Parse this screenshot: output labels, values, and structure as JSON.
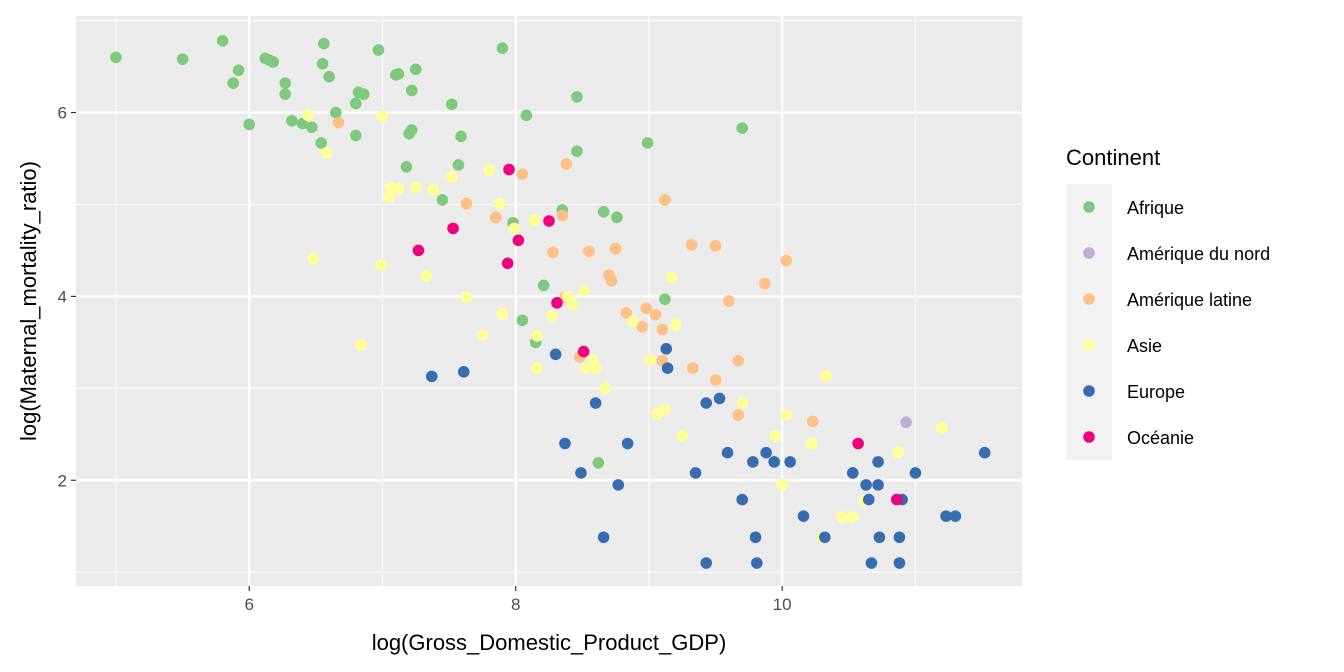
{
  "chart_data": {
    "type": "scatter",
    "title": "",
    "xlabel": "log(Gross_Domestic_Product_GDP)",
    "ylabel": "log(Maternal_mortality_ratio)",
    "xlim": [
      4.7,
      11.8
    ],
    "ylim": [
      0.85,
      7.05
    ],
    "x_ticks": [
      6,
      8,
      10
    ],
    "y_ticks": [
      2,
      4,
      6
    ],
    "grid": true,
    "panel_background": "#ebebeb",
    "legend": {
      "title": "Continent",
      "position": "right"
    },
    "series": [
      {
        "name": "Afrique",
        "color": "#7fc97f",
        "points": [
          [
            5.0,
            6.6
          ],
          [
            5.5,
            6.58
          ],
          [
            5.8,
            6.78
          ],
          [
            5.88,
            6.32
          ],
          [
            5.92,
            6.46
          ],
          [
            6.0,
            5.87
          ],
          [
            6.12,
            6.59
          ],
          [
            6.15,
            6.57
          ],
          [
            6.18,
            6.55
          ],
          [
            6.27,
            6.32
          ],
          [
            6.27,
            6.2
          ],
          [
            6.32,
            5.91
          ],
          [
            6.4,
            5.88
          ],
          [
            6.47,
            5.84
          ],
          [
            6.54,
            5.67
          ],
          [
            6.55,
            6.53
          ],
          [
            6.56,
            6.75
          ],
          [
            6.6,
            6.39
          ],
          [
            6.65,
            6.0
          ],
          [
            6.8,
            6.1
          ],
          [
            6.8,
            5.75
          ],
          [
            6.82,
            6.22
          ],
          [
            6.86,
            6.2
          ],
          [
            6.97,
            6.68
          ],
          [
            7.1,
            6.41
          ],
          [
            7.12,
            6.42
          ],
          [
            7.18,
            5.41
          ],
          [
            7.2,
            5.77
          ],
          [
            7.22,
            6.24
          ],
          [
            7.22,
            5.81
          ],
          [
            7.25,
            6.47
          ],
          [
            7.45,
            5.05
          ],
          [
            7.52,
            6.09
          ],
          [
            7.57,
            5.43
          ],
          [
            7.59,
            5.74
          ],
          [
            7.9,
            6.7
          ],
          [
            7.98,
            4.8
          ],
          [
            8.05,
            3.74
          ],
          [
            8.08,
            5.97
          ],
          [
            8.15,
            3.5
          ],
          [
            8.21,
            4.12
          ],
          [
            8.35,
            4.94
          ],
          [
            8.46,
            6.17
          ],
          [
            8.46,
            5.58
          ],
          [
            8.62,
            2.19
          ],
          [
            8.66,
            4.92
          ],
          [
            8.76,
            4.86
          ],
          [
            8.99,
            5.67
          ],
          [
            9.12,
            3.97
          ],
          [
            9.7,
            5.83
          ]
        ]
      },
      {
        "name": "Amérique du nord",
        "color": "#beaed4",
        "points": [
          [
            10.93,
            2.63
          ]
        ]
      },
      {
        "name": "Amérique latine",
        "color": "#fdc086",
        "points": [
          [
            6.67,
            5.89
          ],
          [
            7.63,
            5.01
          ],
          [
            7.85,
            4.86
          ],
          [
            8.05,
            5.33
          ],
          [
            8.28,
            4.48
          ],
          [
            8.35,
            4.88
          ],
          [
            8.37,
            3.99
          ],
          [
            8.38,
            5.44
          ],
          [
            8.48,
            3.34
          ],
          [
            8.55,
            4.49
          ],
          [
            8.7,
            4.23
          ],
          [
            8.72,
            4.17
          ],
          [
            8.75,
            4.52
          ],
          [
            8.83,
            3.82
          ],
          [
            8.95,
            3.67
          ],
          [
            8.98,
            3.87
          ],
          [
            9.05,
            3.8
          ],
          [
            9.1,
            3.64
          ],
          [
            9.1,
            3.3
          ],
          [
            9.12,
            5.05
          ],
          [
            9.32,
            4.56
          ],
          [
            9.33,
            3.22
          ],
          [
            9.5,
            4.55
          ],
          [
            9.5,
            3.09
          ],
          [
            9.6,
            3.95
          ],
          [
            9.67,
            3.3
          ],
          [
            9.67,
            2.71
          ],
          [
            9.87,
            4.14
          ],
          [
            10.03,
            4.39
          ],
          [
            10.23,
            2.64
          ]
        ]
      },
      {
        "name": "Asie",
        "color": "#ffff99",
        "points": [
          [
            6.44,
            5.97
          ],
          [
            6.48,
            4.41
          ],
          [
            6.58,
            5.56
          ],
          [
            6.84,
            3.47
          ],
          [
            6.99,
            4.34
          ],
          [
            7.0,
            5.96
          ],
          [
            7.05,
            5.08
          ],
          [
            7.06,
            5.19
          ],
          [
            7.12,
            5.17
          ],
          [
            7.25,
            5.19
          ],
          [
            7.33,
            4.22
          ],
          [
            7.38,
            5.16
          ],
          [
            7.52,
            5.3
          ],
          [
            7.63,
            3.99
          ],
          [
            7.75,
            3.58
          ],
          [
            7.8,
            5.37
          ],
          [
            7.88,
            5.01
          ],
          [
            7.9,
            3.81
          ],
          [
            7.99,
            4.74
          ],
          [
            8.14,
            4.83
          ],
          [
            8.16,
            3.57
          ],
          [
            8.16,
            3.22
          ],
          [
            8.27,
            3.79
          ],
          [
            8.39,
            4.0
          ],
          [
            8.43,
            3.91
          ],
          [
            8.51,
            4.06
          ],
          [
            8.53,
            3.22
          ],
          [
            8.58,
            3.31
          ],
          [
            8.6,
            3.22
          ],
          [
            8.67,
            3.0
          ],
          [
            8.88,
            3.73
          ],
          [
            9.01,
            3.31
          ],
          [
            9.06,
            2.72
          ],
          [
            9.12,
            2.77
          ],
          [
            9.17,
            4.21
          ],
          [
            9.2,
            3.69
          ],
          [
            9.25,
            2.48
          ],
          [
            9.7,
            2.84
          ],
          [
            9.95,
            2.48
          ],
          [
            10.0,
            1.95
          ],
          [
            10.03,
            2.71
          ],
          [
            10.22,
            2.4
          ],
          [
            10.3,
            1.38
          ],
          [
            10.33,
            3.13
          ],
          [
            10.45,
            1.6
          ],
          [
            10.53,
            1.6
          ],
          [
            10.62,
            1.78
          ],
          [
            10.87,
            2.3
          ],
          [
            11.2,
            2.57
          ]
        ]
      },
      {
        "name": "Europe",
        "color": "#386cb0",
        "points": [
          [
            7.37,
            3.13
          ],
          [
            7.61,
            3.18
          ],
          [
            8.3,
            3.37
          ],
          [
            8.37,
            2.4
          ],
          [
            8.49,
            2.08
          ],
          [
            8.6,
            2.84
          ],
          [
            8.66,
            1.38
          ],
          [
            8.77,
            1.95
          ],
          [
            8.84,
            2.4
          ],
          [
            9.13,
            3.43
          ],
          [
            9.14,
            3.22
          ],
          [
            9.35,
            2.08
          ],
          [
            9.43,
            1.1
          ],
          [
            9.43,
            2.84
          ],
          [
            9.53,
            2.89
          ],
          [
            9.59,
            2.3
          ],
          [
            9.7,
            1.79
          ],
          [
            9.78,
            2.2
          ],
          [
            9.8,
            1.38
          ],
          [
            9.81,
            1.1
          ],
          [
            9.88,
            2.3
          ],
          [
            9.94,
            2.2
          ],
          [
            10.06,
            2.2
          ],
          [
            10.16,
            1.61
          ],
          [
            10.32,
            1.38
          ],
          [
            10.53,
            2.08
          ],
          [
            10.63,
            1.95
          ],
          [
            10.65,
            1.79
          ],
          [
            10.67,
            1.1
          ],
          [
            10.72,
            2.2
          ],
          [
            10.72,
            1.95
          ],
          [
            10.73,
            1.38
          ],
          [
            10.88,
            1.1
          ],
          [
            10.88,
            1.38
          ],
          [
            10.9,
            1.79
          ],
          [
            11.0,
            2.08
          ],
          [
            11.23,
            1.61
          ],
          [
            11.3,
            1.61
          ],
          [
            11.52,
            2.3
          ]
        ]
      },
      {
        "name": "Océanie",
        "color": "#f0027f",
        "points": [
          [
            7.27,
            4.5
          ],
          [
            7.53,
            4.74
          ],
          [
            7.94,
            4.36
          ],
          [
            7.95,
            5.38
          ],
          [
            8.02,
            4.61
          ],
          [
            8.25,
            4.82
          ],
          [
            8.31,
            3.93
          ],
          [
            8.51,
            3.4
          ],
          [
            10.57,
            2.4
          ],
          [
            10.86,
            1.79
          ]
        ]
      }
    ]
  }
}
